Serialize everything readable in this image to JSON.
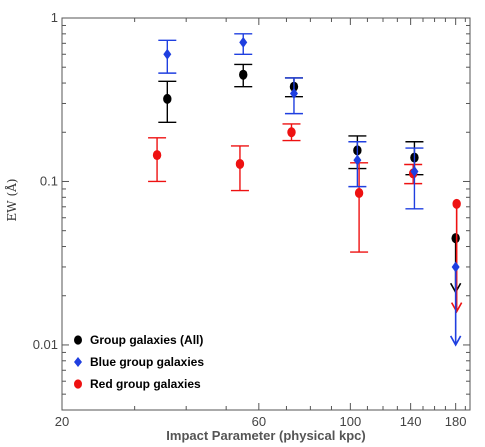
{
  "chart_data": {
    "type": "scatter",
    "xlabel": "Impact Parameter (physical kpc)",
    "ylabel": "EW (Å)",
    "xlim": [
      20,
      195
    ],
    "ylim": [
      0.004,
      1.0
    ],
    "yscale": "log",
    "x_ticks": [
      20,
      60,
      100,
      140,
      180
    ],
    "y_ticks": [
      {
        "value": 0.01,
        "label": "0.01"
      },
      {
        "value": 0.1,
        "label": "0.1"
      },
      {
        "value": 1,
        "label": "1"
      }
    ],
    "legend_position": "bottom-left",
    "series": [
      {
        "name": "Group galaxies (All)",
        "color": "#000000",
        "marker": "circle",
        "points": [
          {
            "x": 36,
            "y": 0.32,
            "lo": 0.23,
            "hi": 0.41
          },
          {
            "x": 55,
            "y": 0.45,
            "lo": 0.38,
            "hi": 0.52
          },
          {
            "x": 73,
            "y": 0.38,
            "lo": 0.33,
            "hi": 0.43
          },
          {
            "x": 104,
            "y": 0.155,
            "lo": 0.12,
            "hi": 0.19
          },
          {
            "x": 143,
            "y": 0.14,
            "lo": 0.11,
            "hi": 0.175
          },
          {
            "x": 180,
            "y": 0.045,
            "upper_limit": true,
            "arrow_to": 0.021
          }
        ]
      },
      {
        "name": "Blue group galaxies",
        "color": "#1f3fe0",
        "marker": "diamond",
        "points": [
          {
            "x": 36,
            "y": 0.6,
            "lo": 0.46,
            "hi": 0.73
          },
          {
            "x": 55,
            "y": 0.71,
            "lo": 0.6,
            "hi": 0.8
          },
          {
            "x": 73,
            "y": 0.345,
            "lo": 0.26,
            "hi": 0.43
          },
          {
            "x": 104,
            "y": 0.135,
            "lo": 0.093,
            "hi": 0.175
          },
          {
            "x": 143,
            "y": 0.115,
            "lo": 0.068,
            "hi": 0.16
          },
          {
            "x": 180,
            "y": 0.03,
            "upper_limit": true,
            "arrow_to": 0.01
          }
        ]
      },
      {
        "name": "Red group galaxies",
        "color": "#ee1111",
        "marker": "circle",
        "points": [
          {
            "x": 34,
            "y": 0.145,
            "lo": 0.1,
            "hi": 0.185
          },
          {
            "x": 54,
            "y": 0.128,
            "lo": 0.088,
            "hi": 0.165
          },
          {
            "x": 72,
            "y": 0.2,
            "lo": 0.178,
            "hi": 0.225
          },
          {
            "x": 105,
            "y": 0.085,
            "lo": 0.037,
            "hi": 0.13
          },
          {
            "x": 142,
            "y": 0.112,
            "lo": 0.097,
            "hi": 0.127
          },
          {
            "x": 181,
            "y": 0.073,
            "upper_limit": true,
            "arrow_to": 0.016
          }
        ]
      }
    ]
  }
}
